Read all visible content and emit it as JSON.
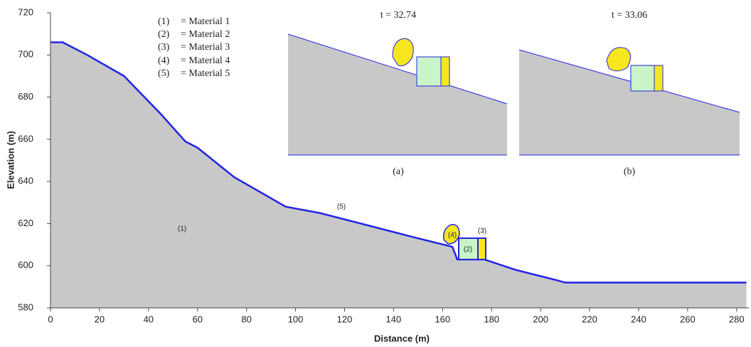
{
  "chart_data": {
    "type": "area",
    "x_label": "Distance (m)",
    "y_label": "Elevation (m)",
    "x": [
      0,
      5,
      15,
      30,
      45,
      55,
      60,
      75,
      96,
      110,
      130,
      150,
      164,
      166,
      177,
      190,
      207,
      210,
      284
    ],
    "values": [
      706,
      706,
      700,
      690,
      672,
      659,
      656,
      642,
      628,
      625,
      619,
      613,
      609,
      603,
      603,
      598,
      593,
      592,
      592
    ],
    "color": "#c8c8c8",
    "line_color": "#2323e6",
    "xlim": [
      0,
      285
    ],
    "ylim": [
      580,
      720
    ],
    "xticks": [
      0,
      20,
      40,
      60,
      80,
      100,
      120,
      140,
      160,
      180,
      200,
      220,
      240,
      260,
      280
    ],
    "yticks": [
      580,
      600,
      620,
      640,
      660,
      680,
      700,
      720
    ],
    "legend": [
      {
        "key": "(1)",
        "text": "= Material 1"
      },
      {
        "key": "(2)",
        "text": "= Material 2"
      },
      {
        "key": "(3)",
        "text": "= Material 3"
      },
      {
        "key": "(4)",
        "text": "= Material 4"
      },
      {
        "key": "(5)",
        "text": "= Material 5"
      }
    ],
    "annotations": [
      "(1)",
      "(5)",
      "(4)",
      "(2)",
      "(3)"
    ],
    "insets": [
      {
        "title": "t = 32.74",
        "label": "(a)"
      },
      {
        "title": "t = 33.06",
        "label": "(b)"
      }
    ]
  }
}
